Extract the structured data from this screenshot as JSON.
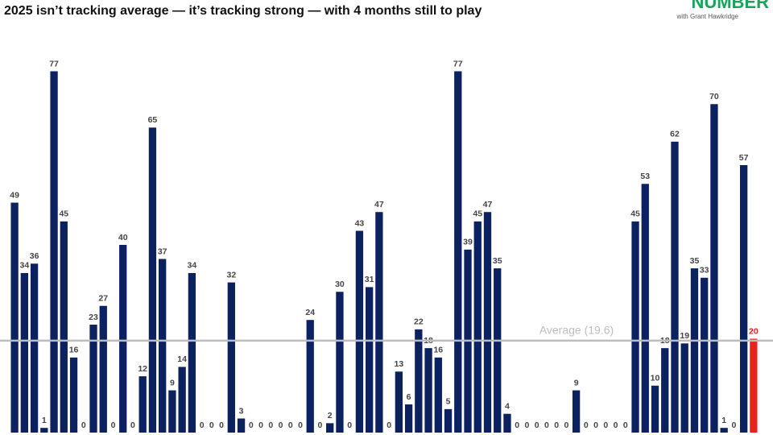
{
  "chart_data": {
    "type": "bar",
    "title": "2025 isn’t tracking average — it’s tracking strong — with 4 months still to play",
    "brand": "NUMBER",
    "brand_subtitle": "with Grant Hawkridge",
    "values": [
      49,
      34,
      36,
      1,
      77,
      45,
      16,
      0,
      23,
      27,
      0,
      40,
      0,
      12,
      65,
      37,
      9,
      14,
      34,
      0,
      0,
      0,
      32,
      3,
      0,
      0,
      0,
      0,
      0,
      0,
      24,
      0,
      2,
      30,
      0,
      43,
      31,
      47,
      0,
      13,
      6,
      22,
      18,
      16,
      5,
      77,
      39,
      45,
      47,
      35,
      4,
      0,
      0,
      0,
      0,
      0,
      0,
      9,
      0,
      0,
      0,
      0,
      0,
      45,
      53,
      10,
      18,
      62,
      19,
      35,
      33,
      70,
      1,
      0,
      57,
      20
    ],
    "color": "#0b2160",
    "last_color": "#e8211d",
    "ylim": [
      0,
      80
    ],
    "average": {
      "value": 19.6,
      "label": "Average (19.6)"
    },
    "average_color": "#bdbdbd"
  }
}
